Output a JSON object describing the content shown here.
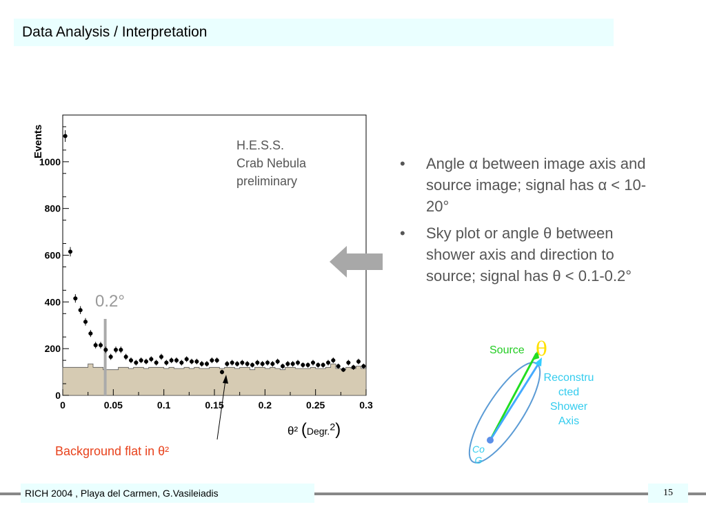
{
  "slide": {
    "title": "Data Analysis / Interpretation",
    "footer": "RICH 2004 , Playa del Carmen, G.Vasileiadis",
    "page_number": "15"
  },
  "chart_labels": {
    "hess": [
      "H.E.S.S.",
      "Crab Nebula",
      "preliminary"
    ],
    "cut": "0.2°",
    "xaxis_theta": "θ²",
    "xaxis_unit": "Degr.",
    "xaxis_sup": "2",
    "background_note": "Background flat in θ²"
  },
  "bullets": [
    "Angle α between image axis and source image; signal has α < 10-20°",
    "Sky plot or angle θ between shower axis and direction to source; signal has θ < 0.1-0.2°"
  ],
  "diagram": {
    "source": "Source",
    "theta": "θ",
    "reconstructed": [
      "Reconstru",
      "cted",
      "Shower",
      "Axis"
    ],
    "cog": [
      "Co",
      "G"
    ]
  },
  "colors": {
    "histogram_fill": "#d6cbb3",
    "source_arrow": "#22dd22",
    "shower_axis": "#44aaff",
    "theta_arc": "#ffe000",
    "background_note": "#e8421c",
    "cut_line": "#aaaaaa",
    "title_bg": "#eaffff"
  },
  "chart_data": {
    "type": "scatter",
    "ylabel": "Events",
    "xlim": [
      0,
      0.3
    ],
    "ylim": [
      0,
      1200
    ],
    "xticks": [
      "0",
      "0.05",
      "0.1",
      "0.15",
      "0.2",
      "0.25",
      "0.3"
    ],
    "yticks": [
      "0",
      "200",
      "400",
      "600",
      "800",
      "1000"
    ],
    "bin_width": 0.005,
    "series": [
      {
        "kind": "points",
        "x": [
          0.0025,
          0.0075,
          0.0125,
          0.0175,
          0.0225,
          0.0275,
          0.0325,
          0.0375,
          0.0425,
          0.0475,
          0.0525,
          0.0575,
          0.0625,
          0.0675,
          0.0725,
          0.0775,
          0.0825,
          0.0875,
          0.0925,
          0.0975,
          0.1025,
          0.1075,
          0.1125,
          0.1175,
          0.1225,
          0.1275,
          0.1325,
          0.1375,
          0.1425,
          0.1475,
          0.1525,
          0.1575,
          0.1625,
          0.1675,
          0.1725,
          0.1775,
          0.1825,
          0.1875,
          0.1925,
          0.1975,
          0.2025,
          0.2075,
          0.2125,
          0.2175,
          0.2225,
          0.2275,
          0.2325,
          0.2375,
          0.2425,
          0.2475,
          0.2525,
          0.2575,
          0.2625,
          0.2675,
          0.2725,
          0.2775,
          0.2825,
          0.2875,
          0.2925,
          0.2975
        ],
        "y": [
          1110,
          615,
          415,
          365,
          315,
          265,
          215,
          215,
          195,
          165,
          195,
          195,
          165,
          150,
          140,
          150,
          145,
          155,
          140,
          165,
          140,
          150,
          150,
          140,
          155,
          145,
          145,
          135,
          135,
          150,
          150,
          100,
          135,
          140,
          135,
          140,
          135,
          130,
          140,
          135,
          140,
          135,
          145,
          125,
          135,
          135,
          140,
          130,
          130,
          140,
          130,
          130,
          140,
          150,
          125,
          110,
          140,
          120,
          145,
          125
        ],
        "err": [
          25,
          20,
          18,
          17,
          16,
          15,
          14,
          14,
          14,
          13,
          14,
          14,
          13,
          12,
          12,
          12,
          12,
          12,
          12,
          13,
          12,
          12,
          12,
          12,
          12,
          12,
          12,
          12,
          12,
          12,
          12,
          10,
          12,
          12,
          12,
          12,
          12,
          11,
          12,
          12,
          12,
          12,
          12,
          11,
          12,
          12,
          12,
          11,
          11,
          12,
          11,
          11,
          12,
          12,
          11,
          10,
          12,
          11,
          12,
          11
        ]
      },
      {
        "kind": "histogram",
        "name": "background",
        "y": [
          120,
          120,
          120,
          120,
          120,
          135,
          120,
          120,
          110,
          110,
          110,
          120,
          120,
          115,
          120,
          120,
          115,
          120,
          120,
          120,
          115,
          120,
          115,
          115,
          120,
          115,
          120,
          115,
          115,
          120,
          120,
          115,
          120,
          120,
          115,
          120,
          120,
          110,
          120,
          120,
          115,
          120,
          115,
          110,
          120,
          120,
          115,
          115,
          115,
          120,
          115,
          115,
          120,
          135,
          115,
          110,
          120,
          115,
          125,
          115
        ]
      }
    ],
    "cut_x": 0.042
  }
}
